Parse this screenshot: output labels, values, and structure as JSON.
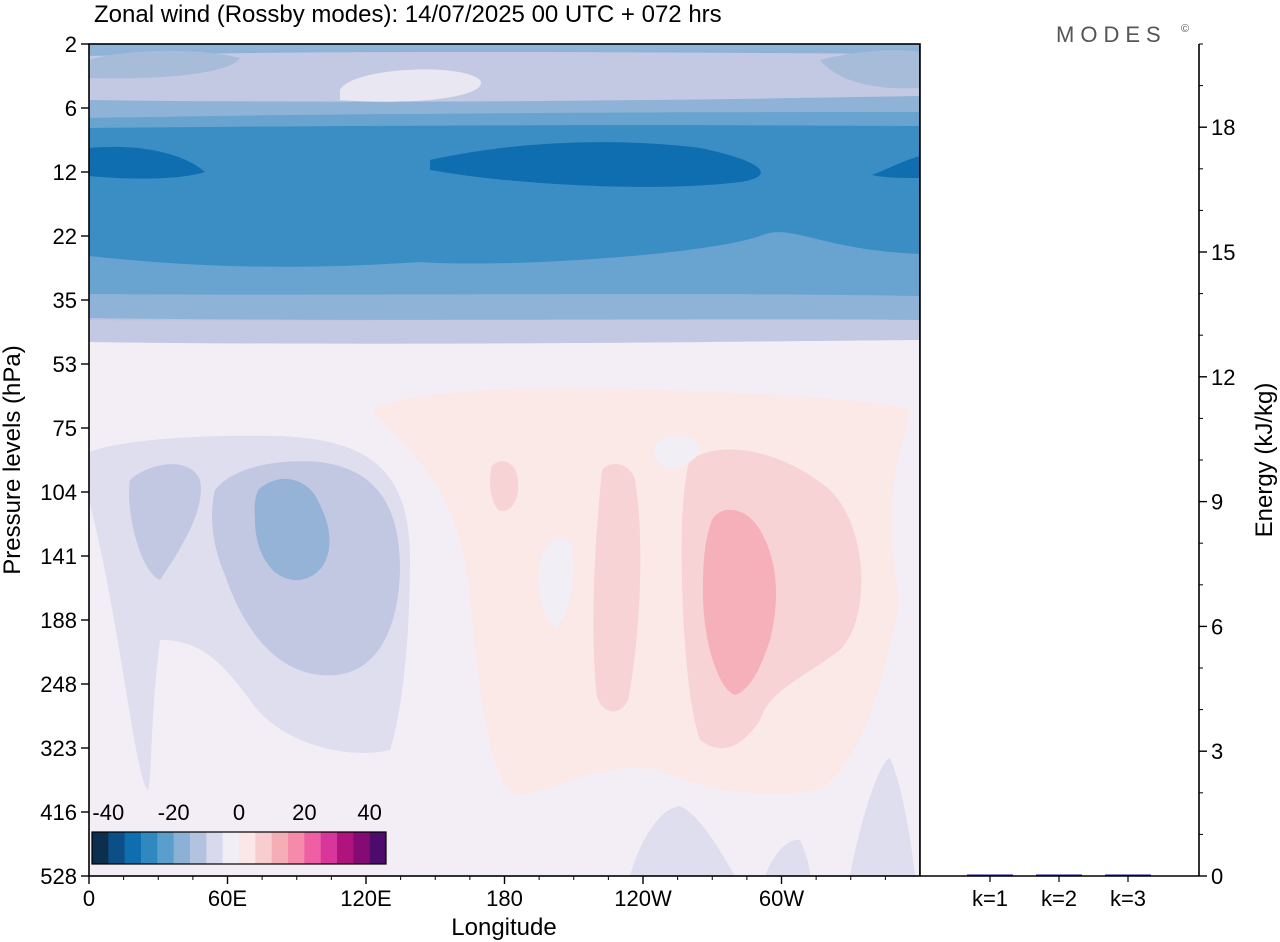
{
  "title": "Zonal wind (Rossby modes):  14/07/2025  00 UTC  + 072 hrs",
  "logo": "MODES",
  "logo_mark": "©",
  "chart_data": [
    {
      "type": "heatmap",
      "xlabel": "Longitude",
      "ylabel": "Pressure levels (hPa)",
      "x_ticks": [
        {
          "lon": 0,
          "label": "0"
        },
        {
          "lon": 60,
          "label": "60E"
        },
        {
          "lon": 120,
          "label": "120E"
        },
        {
          "lon": 180,
          "label": "180"
        },
        {
          "lon": 240,
          "label": "120W"
        },
        {
          "lon": 300,
          "label": "60W"
        }
      ],
      "xlim": [
        0,
        360
      ],
      "y_levels": [
        "2",
        "6",
        "12",
        "22",
        "35",
        "53",
        "75",
        "104",
        "141",
        "188",
        "248",
        "323",
        "416",
        "528"
      ],
      "colorbar": {
        "ticks": [
          "-40",
          "-20",
          "0",
          "20",
          "40"
        ],
        "range": [
          -45,
          45
        ],
        "colors": [
          "#0c2f4e",
          "#0b4f86",
          "#0f6eb0",
          "#2f88c0",
          "#5a9fcb",
          "#8bb2d6",
          "#b3c2df",
          "#d8d9ec",
          "#f1eef6",
          "#fbe7e7",
          "#f8cdd0",
          "#f6aeb6",
          "#f68aaa",
          "#ee5fa3",
          "#d9369b",
          "#b0127e",
          "#850b74",
          "#4d0c6b"
        ]
      },
      "wind_field": [
        {
          "level": "2",
          "values": [
            -14,
            -12,
            -10,
            -14,
            -8,
            -6,
            -10
          ]
        },
        {
          "level": "6",
          "values": [
            -20,
            -18,
            -16,
            -18,
            -18,
            -16,
            -20
          ]
        },
        {
          "level": "12",
          "values": [
            -36,
            -34,
            -32,
            -34,
            -36,
            -32,
            -34
          ]
        },
        {
          "level": "22",
          "values": [
            -30,
            -30,
            -30,
            -30,
            -28,
            -26,
            -30
          ]
        },
        {
          "level": "35",
          "values": [
            -16,
            -16,
            -16,
            -16,
            -16,
            -16,
            -16
          ]
        },
        {
          "level": "53",
          "values": [
            -2,
            -2,
            -2,
            -2,
            -2,
            -2,
            -2
          ]
        },
        {
          "level": "75",
          "values": [
            -2,
            -2,
            0,
            2,
            2,
            2,
            0
          ]
        },
        {
          "level": "104",
          "values": [
            -6,
            -10,
            -4,
            4,
            6,
            6,
            -2
          ]
        },
        {
          "level": "141",
          "values": [
            -8,
            -18,
            -6,
            2,
            8,
            14,
            2
          ]
        },
        {
          "level": "188",
          "values": [
            -4,
            -10,
            -4,
            4,
            8,
            16,
            4
          ]
        },
        {
          "level": "248",
          "values": [
            -2,
            -6,
            -2,
            4,
            6,
            10,
            2
          ]
        },
        {
          "level": "323",
          "values": [
            -2,
            -4,
            -2,
            2,
            4,
            4,
            0
          ]
        },
        {
          "level": "416",
          "values": [
            0,
            -2,
            0,
            2,
            2,
            2,
            -2
          ]
        },
        {
          "level": "528",
          "values": [
            0,
            0,
            0,
            0,
            -2,
            -2,
            -4
          ]
        }
      ]
    },
    {
      "type": "bar",
      "ylabel": "Energy (kJ/kg)",
      "categories": [
        "k=1",
        "k=2",
        "k=3"
      ],
      "values": [
        0.03,
        0.01,
        0.01
      ],
      "ylim": [
        0,
        20
      ],
      "y_ticks": [
        0,
        3,
        6,
        9,
        12,
        15,
        18
      ],
      "bar_color": "#1a1aa0"
    }
  ]
}
